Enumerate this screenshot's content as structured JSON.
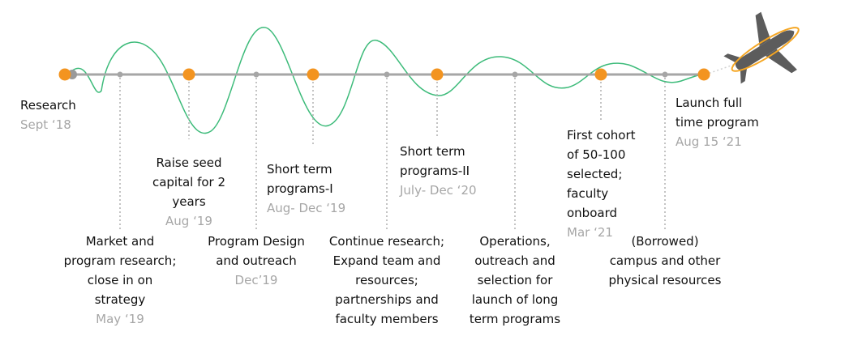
{
  "milestones": [
    {
      "text": "Research",
      "date": "Sept ‘18"
    },
    {
      "text": "Raise seed\ncapital for 2\nyears",
      "date": "Aug ‘19"
    },
    {
      "text": "Short term\nprograms-I",
      "date": "Aug- Dec ‘19"
    },
    {
      "text": "Short term\nprograms-II",
      "date": "July- Dec ‘20"
    },
    {
      "text": "First cohort\nof 50-100\nselected;\nfaculty\nonboard",
      "date": "Mar ‘21"
    },
    {
      "text": "Launch full\ntime program",
      "date": "Aug 15 ‘21"
    }
  ],
  "activities": [
    {
      "text": "Market and\nprogram research;\nclose in on\nstrategy",
      "date": "May ‘19"
    },
    {
      "text": "Program Design\nand outreach",
      "date": "Dec’19"
    },
    {
      "text": "Continue research;\nExpand team and\nresources;\npartnerships and\nfaculty members",
      "date": ""
    },
    {
      "text": "Operations,\noutreach and\nselection for\nlaunch of long\nterm programs",
      "date": ""
    },
    {
      "text": "(Borrowed)\ncampus and other\nphysical resources",
      "date": ""
    }
  ],
  "colors": {
    "milestone": "#f39420",
    "axis": "#a6a6a6",
    "wave": "#3dbb7a",
    "leader": "#b0b0b0",
    "date": "#a6a6a6",
    "plane": "#5c5c5c",
    "orbit": "#f5a623"
  },
  "icons": {
    "end": "airplane-icon"
  }
}
